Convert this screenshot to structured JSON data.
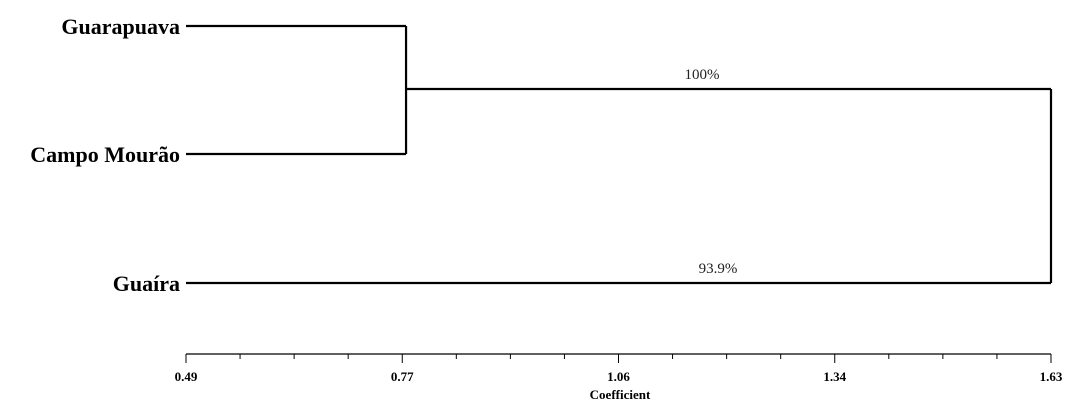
{
  "chart_data": {
    "type": "dendrogram",
    "leaves": [
      "Guarapuava",
      "Campo Mourão",
      "Guaíra"
    ],
    "merges": [
      {
        "children": [
          "Guarapuava",
          "Campo Mourão"
        ],
        "height": 0.78,
        "label": "100%"
      },
      {
        "children": [
          "Guarapuava+Campo Mourão",
          "Guaíra"
        ],
        "height": 1.63,
        "label": "93.9%"
      }
    ],
    "x_axis": {
      "label": "Coefficient",
      "range": [
        0.49,
        1.63
      ],
      "ticks": [
        "0.49",
        "0.77",
        "1.06",
        "1.34",
        "1.63"
      ],
      "minor_ticks_per_interval": 3
    },
    "orientation": "left-to-right",
    "color": "#000000"
  }
}
